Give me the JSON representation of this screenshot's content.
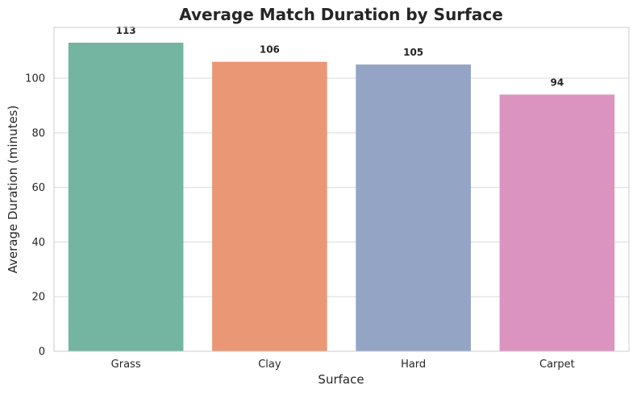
{
  "chart_data": {
    "type": "bar",
    "title": "Average Match Duration by Surface",
    "xlabel": "Surface",
    "ylabel": "Average Duration (minutes)",
    "categories": [
      "Grass",
      "Clay",
      "Hard",
      "Carpet"
    ],
    "values": [
      113,
      106,
      105,
      94
    ],
    "value_labels": [
      "113",
      "106",
      "105",
      "94"
    ],
    "colors": [
      "#73b5a0",
      "#ea9775",
      "#94a4c4",
      "#db94c0"
    ],
    "ylim": [
      0,
      118.6
    ],
    "yticks": [
      0,
      20,
      40,
      60,
      80,
      100
    ],
    "ytick_labels": [
      "0",
      "20",
      "40",
      "60",
      "80",
      "100"
    ],
    "grid": "y",
    "legend": "none"
  }
}
